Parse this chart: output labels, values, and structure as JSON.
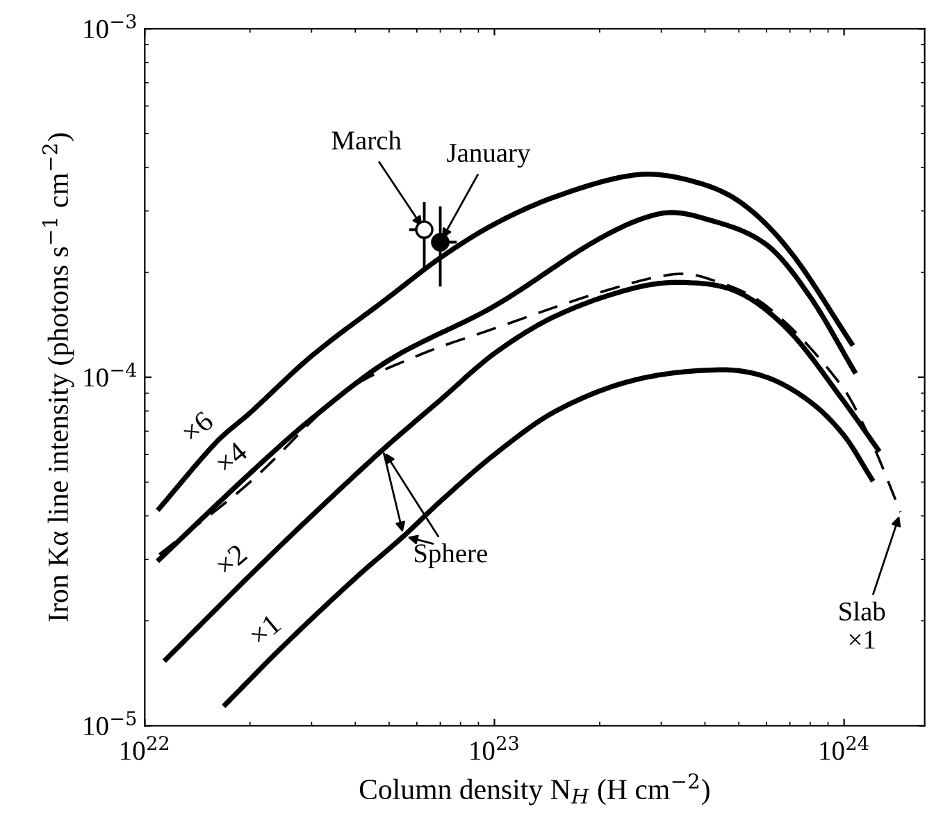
{
  "chart_data": {
    "type": "line",
    "xlabel": "Column density N$_{H}$ (H cm$^{−2}$)",
    "ylabel": "Iron Kα line intensity (photons s$^{−1}$ cm$^{−2}$)",
    "log": "xy",
    "grid": false,
    "marker": "none",
    "xlim": [
      1e+22,
      1.7e+24
    ],
    "xticks": [
      {
        "value": 1e+22,
        "label": "10$^{22}$"
      },
      {
        "value": 1e+23,
        "label": "10$^{23}$"
      },
      {
        "value": 1e+24,
        "label": "10$^{24}$"
      }
    ],
    "ylim": [
      1e-05,
      0.001
    ],
    "yticks": [
      {
        "value": 1e-05,
        "label": "10$^{−5}$"
      },
      {
        "value": 0.0001,
        "label": "10$^{−4}$"
      },
      {
        "value": 0.001,
        "label": "10$^{−3}$"
      }
    ],
    "series": [
      {
        "name": "×6",
        "color": "#000000",
        "line_style": "solid",
        "x": [
          1.1e+22,
          1.6e+22,
          2e+22,
          3e+22,
          5e+22,
          7e+22,
          1e+23,
          1.5e+23,
          2.5e+23,
          3.5e+23,
          5e+23,
          7e+23,
          1.05e+24
        ],
        "values": [
          4.2e-05,
          6.5e-05,
          7.9e-05,
          0.000115,
          0.00017,
          0.00022,
          0.000275,
          0.00033,
          0.00038,
          0.00037,
          0.00032,
          0.00023,
          0.000125
        ]
      },
      {
        "name": "×4",
        "color": "#000000",
        "line_style": "solid",
        "x": [
          1.1e+22,
          2e+22,
          3e+22,
          5e+22,
          1e+23,
          2e+23,
          3e+23,
          4e+23,
          6e+23,
          8e+23,
          1.07e+24
        ],
        "values": [
          3e-05,
          5.3e-05,
          7.6e-05,
          0.000112,
          0.00016,
          0.00025,
          0.000295,
          0.000285,
          0.00024,
          0.00017,
          0.000104
        ]
      },
      {
        "name": "×2",
        "color": "#000000",
        "line_style": "solid",
        "x": [
          1.15e+22,
          2e+22,
          3e+22,
          4.8e+22,
          7e+22,
          1e+23,
          1.5e+23,
          2.5e+23,
          3.5e+23,
          5e+23,
          7e+23,
          1e+24,
          1.25e+24
        ],
        "values": [
          1.55e-05,
          2.7e-05,
          4e-05,
          6.2e-05,
          8.6e-05,
          0.000117,
          0.00015,
          0.00018,
          0.000187,
          0.000175,
          0.000135,
          8.5e-05,
          6.2e-05
        ]
      },
      {
        "name": "×1",
        "color": "#000000",
        "line_style": "solid",
        "x": [
          1.7e+22,
          2.5e+22,
          4e+22,
          5.5e+22,
          7e+22,
          1e+23,
          1.5e+23,
          2.5e+23,
          4.4e+23,
          6e+23,
          8e+23,
          1e+24,
          1.2e+24
        ],
        "values": [
          1.15e-05,
          1.7e-05,
          2.65e-05,
          3.5e-05,
          4.4e-05,
          6e-05,
          8e-05,
          9.8e-05,
          0.000105,
          0.0001,
          8.5e-05,
          6.8e-05,
          5.1e-05
        ]
      },
      {
        "color": "#000000",
        "line_style": "dashed",
        "x": [
          1.1e+22,
          2e+22,
          3.7e+22,
          6e+22,
          1e+23,
          2e+23,
          3.2e+23,
          4e+23,
          6e+23,
          9.8e+23,
          1.2e+24,
          1.45e+24
        ],
        "values": [
          3.1e-05,
          5e-05,
          9e-05,
          0.000115,
          0.000138,
          0.000175,
          0.000197,
          0.000193,
          0.00016,
          9.5e-05,
          6.5e-05,
          4.1e-05
        ]
      },
      {
        "type": "scatter",
        "marker": "circle",
        "color": "#ffffff",
        "x": [
          6.3e+22
        ],
        "values": [
          0.000265
        ],
        "errors": [
          [
            0.000206,
            0.000318
          ]
        ],
        "xerrors": [
          [
            5.7e+22,
            6.6e+22
          ]
        ]
      },
      {
        "type": "scatter",
        "marker": "circle",
        "color": "#000000",
        "x": [
          7e+22
        ],
        "values": [
          0.000244
        ],
        "errors": [
          [
            0.000182,
            0.000309
          ]
        ],
        "xerrors": [
          [
            6.6e+22,
            7.8e+22
          ]
        ]
      }
    ],
    "annotations": [
      {
        "text": "March",
        "x": 6.3e+22,
        "y": 0.000265
      },
      {
        "text": "January",
        "x": 7e+22,
        "y": 0.000244
      },
      {
        "text": "Sphere",
        "x": 4.8e+22,
        "y": 6.2e-05
      },
      {
        "text": "Slab\n×1",
        "x": 1.45e+24,
        "y": 4.1e-05
      }
    ]
  }
}
